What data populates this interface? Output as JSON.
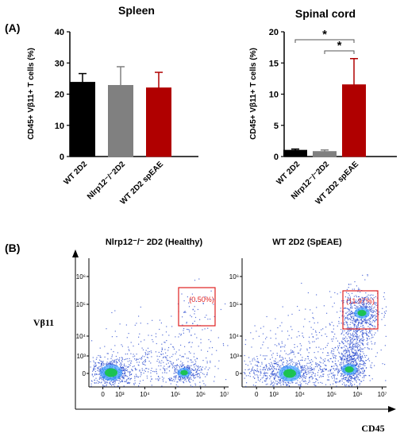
{
  "panel_a_label": "(A)",
  "panel_b_label": "(B)",
  "colors": {
    "wt": "#000000",
    "nlrp12": "#808080",
    "speae": "#b00000",
    "gate": "#e02020",
    "dots": "#2244cc",
    "core": "#19c44a"
  },
  "chart_data": [
    {
      "type": "bar",
      "title": "Spleen",
      "ylabel": "CD45+ Vβ11+ T cells (%)",
      "categories": [
        "WT 2D2",
        "Nlrp12⁻/⁻2D2",
        "WT 2D2 spEAE"
      ],
      "values": [
        23.8,
        22.8,
        22.0
      ],
      "errors": [
        2.8,
        6.0,
        5.0
      ],
      "yticks": [
        "0",
        "10",
        "20",
        "30",
        "40"
      ],
      "ylim": [
        0,
        40
      ],
      "series_colors": [
        "wt",
        "nlrp12",
        "speae"
      ]
    },
    {
      "type": "bar",
      "title": "Spinal cord",
      "ylabel": "CD45+ Vβ11+ T cells (%)",
      "categories": [
        "WT 2D2",
        "Nlrp12⁻/⁻2D2",
        "WT 2D2 spEAE"
      ],
      "values": [
        1.0,
        0.8,
        11.5
      ],
      "errors": [
        0.2,
        0.25,
        4.2
      ],
      "yticks": [
        "0",
        "5",
        "10",
        "15",
        "20"
      ],
      "ylim": [
        0,
        20
      ],
      "series_colors": [
        "wt",
        "nlrp12",
        "speae"
      ],
      "significance": [
        {
          "from": 0,
          "to": 2,
          "label": "*"
        },
        {
          "from": 1,
          "to": 2,
          "label": "*"
        }
      ]
    }
  ],
  "flow": {
    "xlabel": "CD45",
    "ylabel": "Vβ11",
    "xticks": [
      "0",
      "10³",
      "10⁴",
      "10⁵",
      "10⁶",
      "10⁷"
    ],
    "yticks": [
      "0",
      "10³",
      "10⁴",
      "10⁵",
      "10⁶"
    ],
    "plots": [
      {
        "title": "Nlrp12⁻/⁻ 2D2 (Healthy)",
        "gate_pct": "(0.50%)"
      },
      {
        "title": "WT 2D2 (SpEAE)",
        "gate_pct": "(11.97%)"
      }
    ]
  }
}
